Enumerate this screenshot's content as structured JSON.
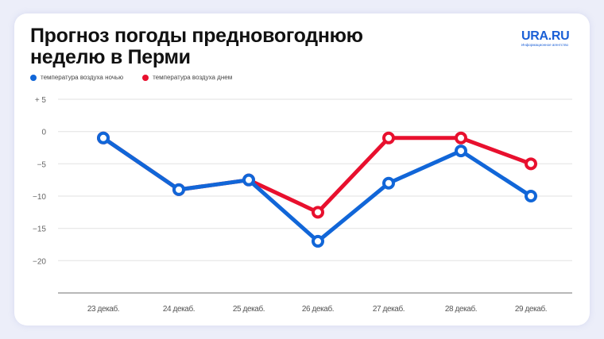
{
  "title_line1": "Прогноз погоды предновогоднюю",
  "title_line2": "неделю в Перми",
  "logo": {
    "main": "URA.RU",
    "sub": "Информационное агентство"
  },
  "colors": {
    "night": "#1166d8",
    "day": "#e8102e",
    "grid": "#e6e6e6",
    "axis": "#a0a0a0"
  },
  "chart_data": {
    "type": "line",
    "categories": [
      "23 декаб.",
      "24 декаб.",
      "25 декаб.",
      "26 декаб.",
      "27 декаб.",
      "28 декаб.",
      "29 декаб."
    ],
    "series": [
      {
        "name": "температура воздуха ночью",
        "values": [
          -1,
          -9,
          -7.5,
          -17,
          -8,
          -3,
          -10
        ]
      },
      {
        "name": "температура воздуха днем",
        "values": [
          -1,
          -9,
          -7.5,
          -12.5,
          -1,
          -1,
          -5
        ]
      }
    ],
    "yticks": [
      5,
      0,
      -5,
      -10,
      -15,
      -20
    ],
    "ytick_labels": [
      "+ 5",
      "0",
      "−5",
      "−10",
      "−15",
      "−20"
    ],
    "ylim": [
      -25,
      5
    ],
    "grid": true,
    "legend": "top-left"
  }
}
